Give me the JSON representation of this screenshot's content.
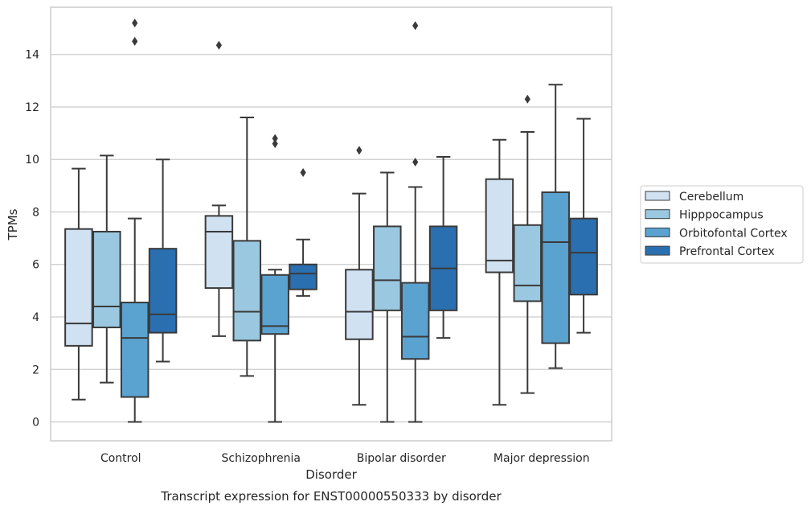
{
  "chart_data": {
    "type": "boxplot",
    "title": "Transcript expression for ENST00000550333 by disorder",
    "xlabel": "Disorder",
    "ylabel": "TPMs",
    "ylim": [
      -0.72,
      15.8
    ],
    "yticks": [
      0,
      2,
      4,
      6,
      8,
      10,
      12,
      14
    ],
    "grid": "horizontal",
    "legend_position": "right",
    "categories": [
      "Control",
      "Schizophrenia",
      "Bipolar disorder",
      "Major depression"
    ],
    "series": [
      {
        "name": "Cerebellum",
        "color": "#d0e1f2",
        "boxes": [
          {
            "whisker_low": 0.85,
            "q1": 2.9,
            "median": 3.75,
            "q3": 7.35,
            "whisker_high": 9.65,
            "outliers": []
          },
          {
            "whisker_low": 3.27,
            "q1": 5.1,
            "median": 7.25,
            "q3": 7.85,
            "whisker_high": 8.25,
            "outliers": [
              14.35
            ]
          },
          {
            "whisker_low": 0.65,
            "q1": 3.15,
            "median": 4.2,
            "q3": 5.8,
            "whisker_high": 8.7,
            "outliers": [
              10.35
            ]
          },
          {
            "whisker_low": 0.65,
            "q1": 5.7,
            "median": 6.15,
            "q3": 9.25,
            "whisker_high": 10.75,
            "outliers": []
          }
        ]
      },
      {
        "name": "Hipppocampus",
        "color": "#9ac8e0",
        "boxes": [
          {
            "whisker_low": 1.5,
            "q1": 3.6,
            "median": 4.4,
            "q3": 7.25,
            "whisker_high": 10.15,
            "outliers": []
          },
          {
            "whisker_low": 1.75,
            "q1": 3.1,
            "median": 4.2,
            "q3": 6.9,
            "whisker_high": 11.6,
            "outliers": []
          },
          {
            "whisker_low": 0.0,
            "q1": 4.25,
            "median": 5.4,
            "q3": 7.45,
            "whisker_high": 9.5,
            "outliers": []
          },
          {
            "whisker_low": 1.1,
            "q1": 4.6,
            "median": 5.2,
            "q3": 7.5,
            "whisker_high": 11.05,
            "outliers": [
              12.3
            ]
          }
        ]
      },
      {
        "name": "Orbitofontal Cortex",
        "color": "#5aa2cf",
        "boxes": [
          {
            "whisker_low": 0.0,
            "q1": 0.95,
            "median": 3.2,
            "q3": 4.55,
            "whisker_high": 7.75,
            "outliers": [
              14.5,
              15.2
            ]
          },
          {
            "whisker_low": 0.0,
            "q1": 3.35,
            "median": 3.65,
            "q3": 5.6,
            "whisker_high": 5.8,
            "outliers": [
              10.6,
              10.8
            ]
          },
          {
            "whisker_low": 0.0,
            "q1": 2.4,
            "median": 3.25,
            "q3": 5.3,
            "whisker_high": 8.95,
            "outliers": [
              9.9,
              15.1
            ]
          },
          {
            "whisker_low": 2.05,
            "q1": 3.0,
            "median": 6.85,
            "q3": 8.75,
            "whisker_high": 12.85,
            "outliers": []
          }
        ]
      },
      {
        "name": "Prefrontal Cortex",
        "color": "#2a6fb0",
        "boxes": [
          {
            "whisker_low": 2.3,
            "q1": 3.4,
            "median": 4.1,
            "q3": 6.6,
            "whisker_high": 10.0,
            "outliers": []
          },
          {
            "whisker_low": 4.8,
            "q1": 5.05,
            "median": 5.65,
            "q3": 6.0,
            "whisker_high": 6.95,
            "outliers": [
              9.5
            ]
          },
          {
            "whisker_low": 3.2,
            "q1": 4.25,
            "median": 5.85,
            "q3": 7.45,
            "whisker_high": 10.1,
            "outliers": []
          },
          {
            "whisker_low": 3.4,
            "q1": 4.85,
            "median": 6.45,
            "q3": 7.75,
            "whisker_high": 11.55,
            "outliers": []
          }
        ]
      }
    ]
  }
}
